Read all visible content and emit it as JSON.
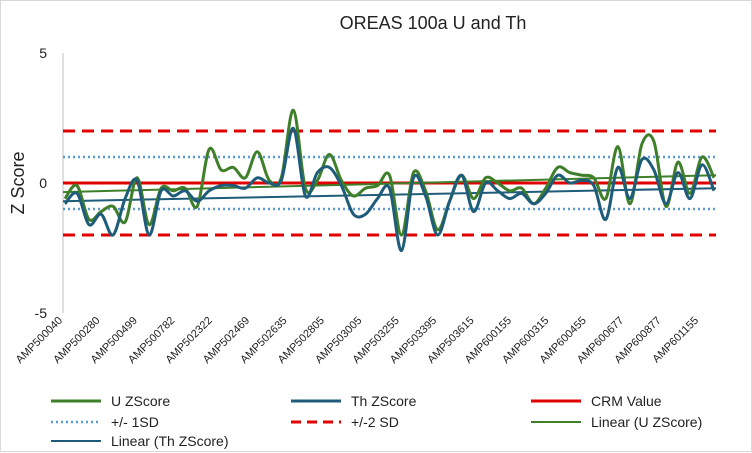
{
  "chart_data": {
    "type": "line",
    "title": "OREAS 100a U and Th",
    "xlabel": "",
    "ylabel": "Z Score",
    "ylim": [
      -5,
      5
    ],
    "yticks": [
      "5",
      "0",
      "-5"
    ],
    "x_tick_labels": [
      "AMP500040",
      "AMP500280",
      "AMP500499",
      "AMP500782",
      "AMP502322",
      "AMP502469",
      "AMP502635",
      "AMP502805",
      "AMP503005",
      "AMP503255",
      "AMP503395",
      "AMP503615",
      "AMP600155",
      "AMP600315",
      "AMP600455",
      "AMP600677",
      "AMP600877",
      "AMP601155"
    ],
    "series": [
      {
        "name": "U ZScore",
        "color": "#3f7f2a",
        "values": [
          -0.6,
          -0.1,
          -1.4,
          -1.1,
          -0.9,
          -1.5,
          0.2,
          -1.6,
          -0.2,
          -0.3,
          -0.2,
          -0.9,
          1.3,
          0.5,
          0.6,
          0.2,
          1.2,
          0.1,
          0.2,
          2.8,
          -0.2,
          0.1,
          1.1,
          0.1,
          -0.5,
          -0.2,
          -0.1,
          0.3,
          -2.0,
          0.4,
          -0.3,
          -1.8,
          -0.7,
          0.3,
          -0.6,
          0.2,
          0.0,
          -0.3,
          -0.2,
          -0.8,
          -0.2,
          0.6,
          0.4,
          0.3,
          0.2,
          -0.6,
          1.4,
          -0.8,
          1.5,
          1.6,
          -0.9,
          0.8,
          -0.4,
          1.0,
          0.2
        ]
      },
      {
        "name": "Th ZScore",
        "color": "#1f5c7a",
        "values": [
          -0.8,
          -0.4,
          -1.6,
          -1.2,
          -2.0,
          -0.6,
          0.1,
          -2.0,
          -0.3,
          -0.5,
          -0.3,
          -0.7,
          -0.3,
          -0.1,
          -0.1,
          -0.2,
          0.2,
          0.0,
          0.1,
          2.1,
          -0.5,
          0.4,
          0.6,
          -0.1,
          -1.2,
          -1.2,
          -0.6,
          -0.2,
          -2.6,
          0.2,
          -0.5,
          -2.0,
          -0.7,
          0.3,
          -1.1,
          0.0,
          -0.3,
          -0.6,
          -0.4,
          -0.8,
          -0.4,
          0.3,
          0.0,
          0.1,
          -0.1,
          -1.4,
          0.6,
          -0.6,
          0.9,
          0.5,
          -0.8,
          0.4,
          -0.6,
          0.7,
          -0.3
        ]
      },
      {
        "name": "CRM Value",
        "color": "#e00000",
        "constant": 0
      },
      {
        "name": "+/- 1SD",
        "color": "#5b9bd5",
        "constant": [
          1,
          -1
        ]
      },
      {
        "name": "+/-2 SD",
        "color": "#e00000",
        "constant": [
          2,
          -2
        ]
      },
      {
        "name": "Linear (U ZScore)",
        "color": "#3f7f2a",
        "trend": [
          -0.35,
          0.3
        ]
      },
      {
        "name": "Linear (Th ZScore)",
        "color": "#1f5c7a",
        "trend": [
          -0.7,
          -0.2
        ]
      }
    ],
    "legend_position": "bottom"
  }
}
